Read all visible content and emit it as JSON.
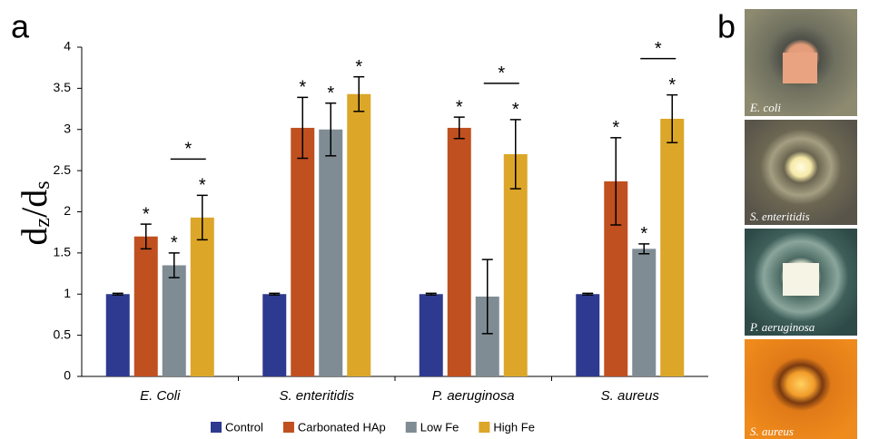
{
  "chart_data": {
    "type": "bar",
    "panel_label": "a",
    "ylabel": [
      "d",
      "z",
      "/d",
      "s"
    ],
    "categories": [
      "E. Coli",
      "S. enteritidis",
      "P. aeruginosa",
      "S. aureus"
    ],
    "series": [
      {
        "name": "Control",
        "color": "#2e3a8f",
        "values": [
          1.0,
          1.0,
          1.0,
          1.0
        ],
        "errors": [
          0.01,
          0.01,
          0.01,
          0.01
        ],
        "stars": [
          null,
          null,
          null,
          null
        ]
      },
      {
        "name": "Carbonated HAp",
        "color": "#c0501f",
        "values": [
          1.7,
          3.02,
          3.02,
          2.37
        ],
        "errors": [
          0.15,
          0.37,
          0.13,
          0.53
        ],
        "stars": [
          "*",
          "*",
          "*",
          "*"
        ]
      },
      {
        "name": "Low Fe",
        "color": "#7f8c93",
        "values": [
          1.35,
          3.0,
          0.97,
          1.55
        ],
        "errors": [
          0.15,
          0.32,
          0.45,
          0.06
        ],
        "stars": [
          "*",
          "*",
          null,
          "*"
        ]
      },
      {
        "name": "High Fe",
        "color": "#dca628",
        "values": [
          1.93,
          3.43,
          2.7,
          3.13
        ],
        "errors": [
          0.27,
          0.21,
          0.42,
          0.29
        ],
        "stars": [
          "*",
          "*",
          "*",
          "*"
        ]
      }
    ],
    "brackets": [
      {
        "category": 0,
        "from": 2,
        "to": 3,
        "label": "*"
      },
      {
        "category": 2,
        "from": 2,
        "to": 3,
        "label": "*"
      },
      {
        "category": 3,
        "from": 2,
        "to": 3,
        "label": "*"
      }
    ],
    "ylim": [
      0,
      4
    ],
    "yticks": [
      0,
      0.5,
      1,
      1.5,
      2,
      2.5,
      3,
      3.5,
      4
    ],
    "grid": false,
    "legend": "bottom"
  },
  "panel_b": {
    "label": "b",
    "captions": [
      "E. coli",
      "S. enteritidis",
      "P. aeruginosa",
      "S. aureus"
    ]
  }
}
